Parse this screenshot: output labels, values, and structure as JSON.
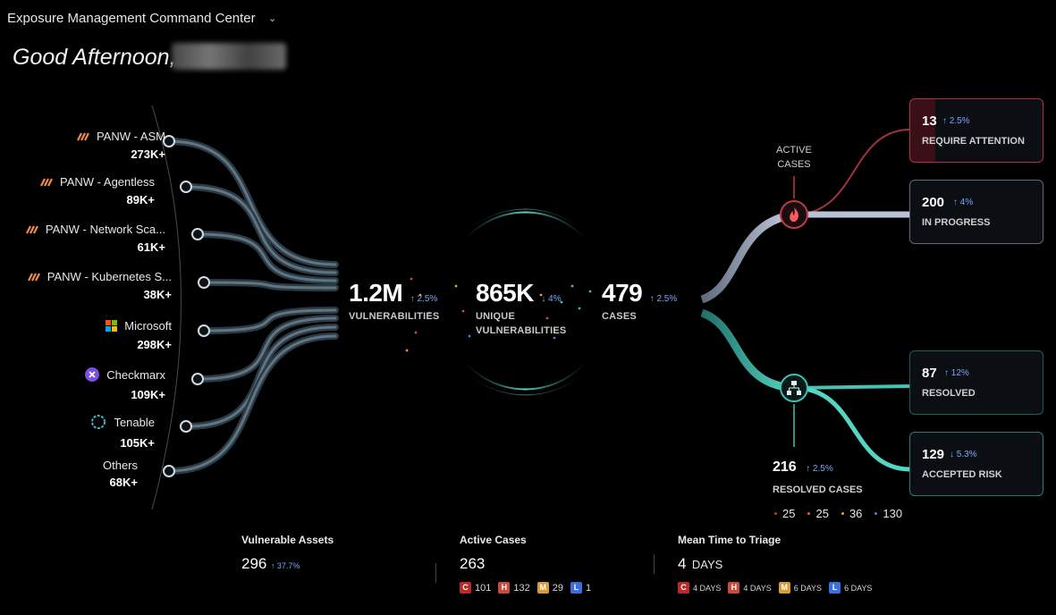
{
  "header": {
    "title": "Exposure Management Command Center"
  },
  "greeting": "Good Afternoon,",
  "sources": [
    {
      "name": "PANW - ASM",
      "count": "273K+",
      "icon": "panw-logo-icon"
    },
    {
      "name": "PANW - Agentless",
      "count": "89K+",
      "icon": "panw-logo-icon"
    },
    {
      "name": "PANW - Network Sca...",
      "count": "61K+",
      "icon": "panw-logo-icon"
    },
    {
      "name": "PANW - Kubernetes S...",
      "count": "38K+",
      "icon": "panw-logo-icon"
    },
    {
      "name": "Microsoft",
      "count": "298K+",
      "icon": "microsoft-logo-icon"
    },
    {
      "name": "Checkmarx",
      "count": "109K+",
      "icon": "checkmarx-logo-icon"
    },
    {
      "name": "Tenable",
      "count": "105K+",
      "icon": "tenable-logo-icon"
    },
    {
      "name": "Others",
      "count": "68K+",
      "icon": ""
    }
  ],
  "funnel": {
    "vulnerabilities": {
      "value": "1.2M",
      "trend": "↑ 2.5%",
      "label": "VULNERABILITIES"
    },
    "unique": {
      "value": "865K",
      "trend": "↓ 4%",
      "label_line1": "UNIQUE",
      "label_line2": "VULNERABILITIES"
    },
    "cases": {
      "value": "479",
      "trend": "↑ 2.5%",
      "label": "CASES"
    }
  },
  "active_cases_label": {
    "line1": "ACTIVE",
    "line2": "CASES"
  },
  "cards": {
    "require_attention": {
      "value": "13",
      "trend": "↑ 2.5%",
      "label": "REQUIRE ATTENTION"
    },
    "in_progress": {
      "value": "200",
      "trend": "↑ 4%",
      "label": "IN PROGRESS"
    },
    "resolved": {
      "value": "87",
      "trend": "↑ 12%",
      "label": "RESOLVED"
    },
    "accepted_risk": {
      "value": "129",
      "trend": "↓ 5.3%",
      "label": "ACCEPTED RISK"
    }
  },
  "resolved_cases": {
    "value": "216",
    "trend": "↑ 2.5%",
    "label": "RESOLVED CASES",
    "breakdown": [
      {
        "count": "25",
        "color": "#c0392b"
      },
      {
        "count": "25",
        "color": "#e05a3a"
      },
      {
        "count": "36",
        "color": "#e0a030"
      },
      {
        "count": "130",
        "color": "#4a7bea"
      }
    ]
  },
  "bottom": {
    "vulnerable_assets": {
      "title": "Vulnerable Assets",
      "value": "296",
      "trend": "↑ 37.7%"
    },
    "active_cases": {
      "title": "Active Cases",
      "value": "263",
      "sev": [
        {
          "letter": "C",
          "text": "101"
        },
        {
          "letter": "H",
          "text": "132"
        },
        {
          "letter": "M",
          "text": "29"
        },
        {
          "letter": "L",
          "text": "1"
        }
      ]
    },
    "mean_time": {
      "title": "Mean Time to Triage",
      "value": "4",
      "unit": "DAYS",
      "sev": [
        {
          "letter": "C",
          "text": "4 DAYS"
        },
        {
          "letter": "H",
          "text": "4 DAYS"
        },
        {
          "letter": "M",
          "text": "6 DAYS"
        },
        {
          "letter": "L",
          "text": "6 DAYS"
        }
      ]
    }
  },
  "colors": {
    "flow_line": "#5a7080",
    "attention": "#c03a4a",
    "progress": "#aab4c8",
    "resolved": "#3ec0b0"
  }
}
